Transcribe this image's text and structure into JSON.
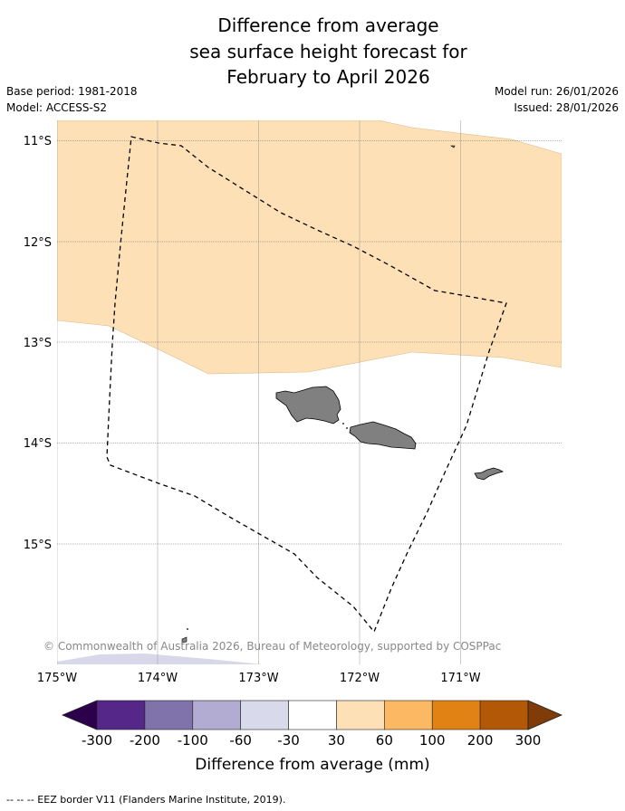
{
  "title": {
    "line1": "Difference from average",
    "line2": "sea surface height forecast for",
    "line3": "February to April 2026"
  },
  "meta": {
    "base_period": "Base period: 1981-2018",
    "model": "Model: ACCESS-S2",
    "model_run": "Model run: 26/01/2026",
    "issued": "Issued: 28/01/2026"
  },
  "map": {
    "lat_labels": [
      "11°S",
      "12°S",
      "13°S",
      "14°S",
      "15°S"
    ],
    "lon_labels": [
      "175°W",
      "174°W",
      "173°W",
      "172°W",
      "171°W"
    ],
    "copyright": "© Commonwealth of Australia 2026, Bureau of Meteorology, supported by COSPPac",
    "colors": {
      "land": "#808080",
      "anomaly_30_60": "#fde0b6",
      "anomaly_neg30_neg60": "#d8d8ea"
    }
  },
  "colorbar": {
    "label": "Difference from average (mm)",
    "ticks": [
      "-300",
      "-200",
      "-100",
      "-60",
      "-30",
      "30",
      "60",
      "100",
      "200",
      "300"
    ],
    "colors": {
      "under": "#2d004b",
      "bins": [
        "#542788",
        "#8073ac",
        "#b2abd2",
        "#d8daeb",
        "#ffffff",
        "#fee0b6",
        "#fdb863",
        "#e08214",
        "#b35806"
      ],
      "over": "#7f3b08"
    }
  },
  "footer": {
    "legend_text": "--  --  -- EEZ border V11 (Flanders Marine Institute, 2019)."
  }
}
